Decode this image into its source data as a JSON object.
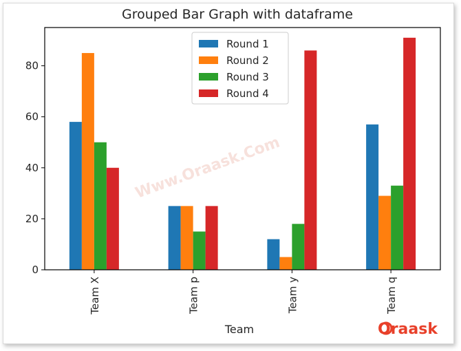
{
  "chart_data": {
    "type": "bar",
    "title": "Grouped Bar Graph with dataframe",
    "xlabel": "Team",
    "ylabel": "",
    "categories": [
      "Team X",
      "Team p",
      "Team y",
      "Team q"
    ],
    "series": [
      {
        "name": "Round 1",
        "color": "#1f77b4",
        "values": [
          58,
          25,
          12,
          57
        ]
      },
      {
        "name": "Round 2",
        "color": "#ff7f0e",
        "values": [
          85,
          25,
          5,
          29
        ]
      },
      {
        "name": "Round 3",
        "color": "#2ca02c",
        "values": [
          50,
          15,
          18,
          33
        ]
      },
      {
        "name": "Round 4",
        "color": "#d62728",
        "values": [
          40,
          25,
          86,
          91
        ]
      }
    ],
    "ylim": [
      0,
      95
    ],
    "yticks": [
      0,
      20,
      40,
      60,
      80
    ],
    "grid": false,
    "legend_position": "top-center"
  },
  "watermark": "Www.Oraask.Com",
  "brand": {
    "logo_text": "Oraask",
    "color": "#e8402a"
  }
}
